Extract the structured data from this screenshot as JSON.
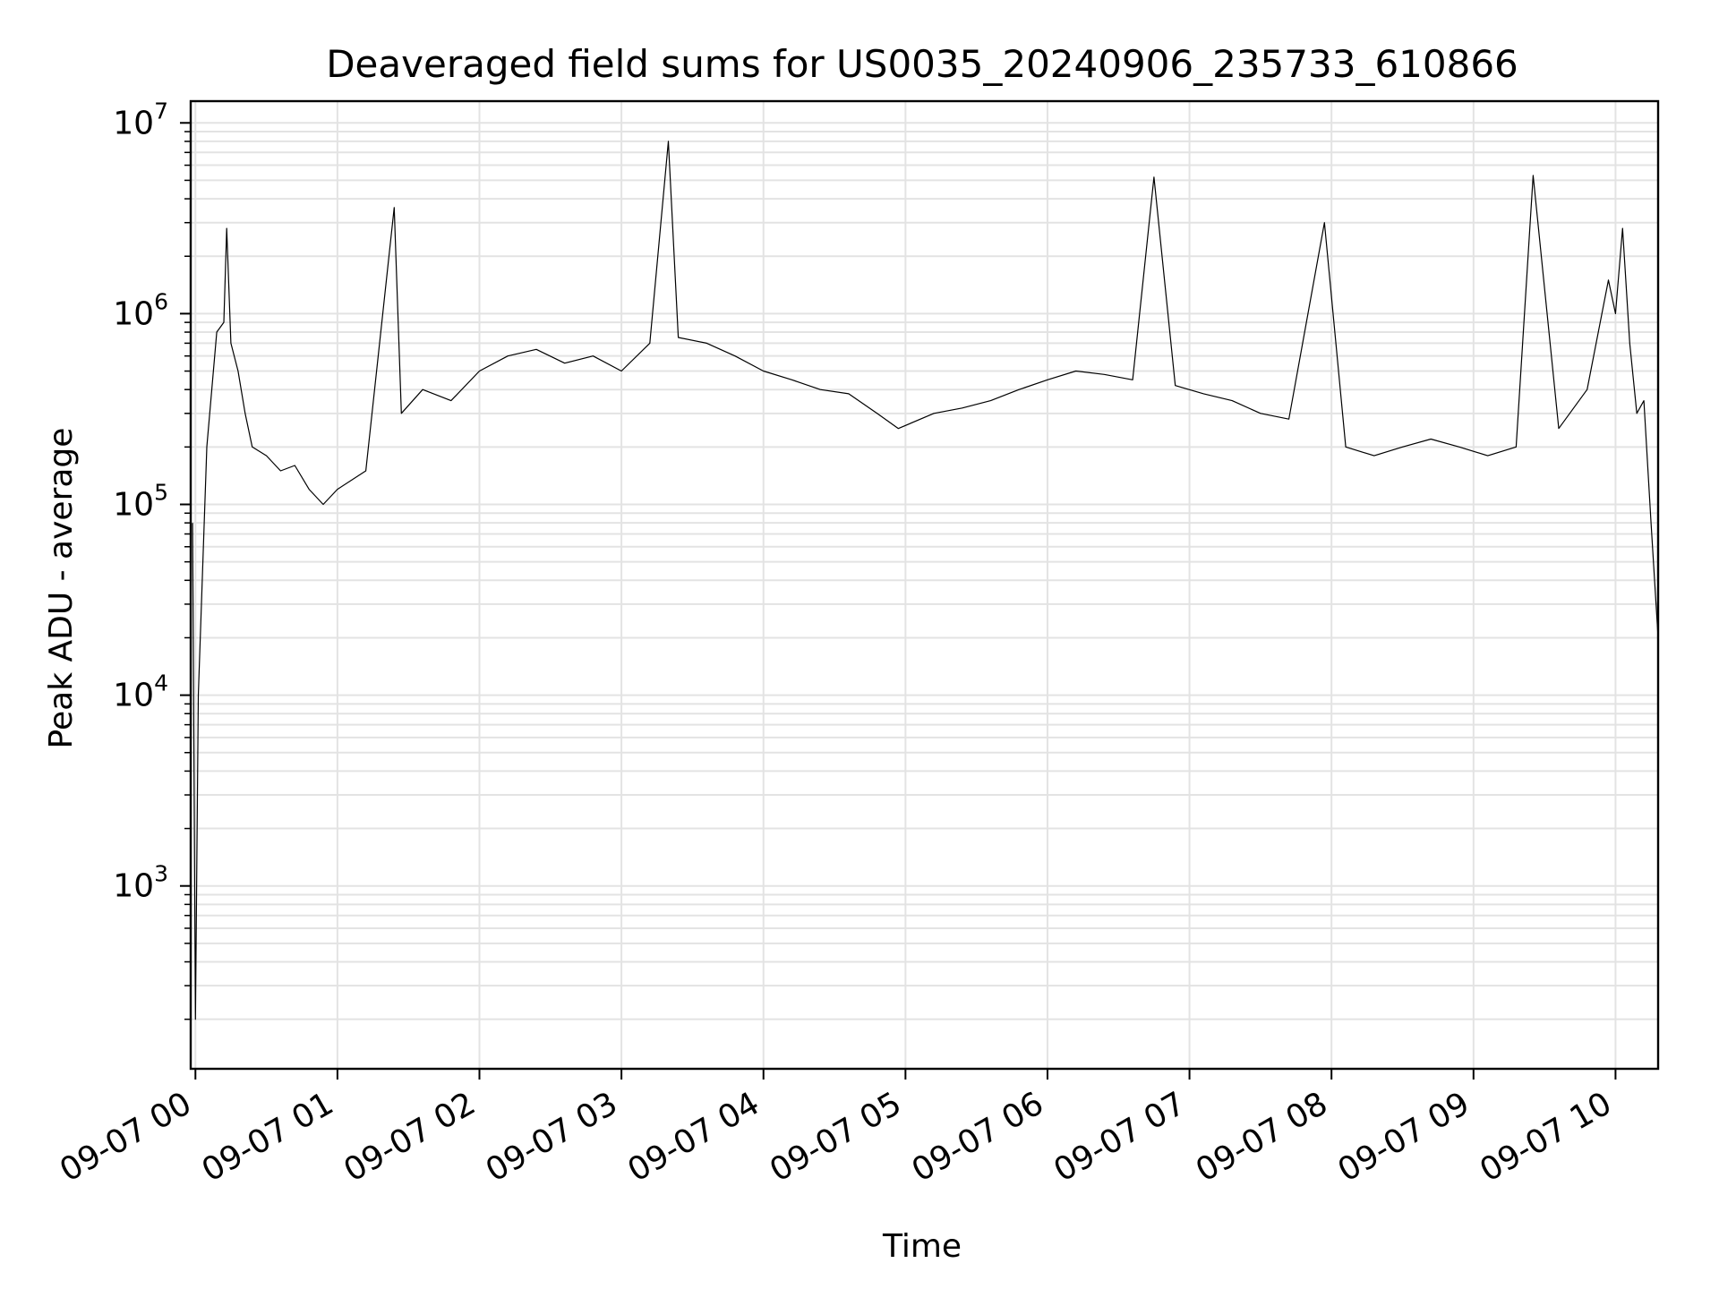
{
  "chart_data": {
    "type": "line",
    "title": "Deaveraged field sums for US0035_20240906_235733_610866",
    "xlabel": "Time",
    "ylabel": "Peak ADU - average",
    "x_scale": "time",
    "y_scale": "log",
    "xlim": [
      "2024-09-06 23:58",
      "2024-09-07 10:18"
    ],
    "ylim": [
      110,
      13000000
    ],
    "x_ticks": [
      "09-07 00",
      "09-07 01",
      "09-07 02",
      "09-07 03",
      "09-07 04",
      "09-07 05",
      "09-07 06",
      "09-07 07",
      "09-07 08",
      "09-07 09",
      "09-07 10"
    ],
    "x_tick_hours": [
      0,
      1,
      2,
      3,
      4,
      5,
      6,
      7,
      8,
      9,
      10
    ],
    "y_ticks": [
      {
        "value": 1000,
        "base": "10",
        "exp": "3"
      },
      {
        "value": 10000,
        "base": "10",
        "exp": "4"
      },
      {
        "value": 100000,
        "base": "10",
        "exp": "5"
      },
      {
        "value": 1000000,
        "base": "10",
        "exp": "6"
      },
      {
        "value": 10000000,
        "base": "10",
        "exp": "7"
      }
    ],
    "grid": true,
    "line_color": "#000000",
    "grid_color": "#e3e3e3",
    "series": [
      {
        "time_hours": [
          -0.02,
          0.0,
          0.02,
          0.08,
          0.15,
          0.2,
          0.22,
          0.25,
          0.3,
          0.35,
          0.4,
          0.5,
          0.6,
          0.7,
          0.8,
          0.9,
          1.0,
          1.2,
          1.4,
          1.45,
          1.6,
          1.8,
          2.0,
          2.2,
          2.4,
          2.6,
          2.8,
          3.0,
          3.2,
          3.33,
          3.4,
          3.6,
          3.8,
          4.0,
          4.2,
          4.4,
          4.6,
          4.8,
          4.95,
          5.2,
          5.4,
          5.6,
          5.8,
          6.0,
          6.2,
          6.4,
          6.6,
          6.75,
          6.9,
          7.1,
          7.3,
          7.5,
          7.7,
          7.95,
          8.1,
          8.3,
          8.5,
          8.7,
          8.9,
          9.1,
          9.3,
          9.42,
          9.6,
          9.8,
          9.95,
          10.0,
          10.05,
          10.1,
          10.15,
          10.2,
          10.25,
          10.3
        ],
        "values": [
          80000,
          200,
          10000,
          200000,
          800000,
          900000,
          2800000,
          700000,
          500000,
          300000,
          200000,
          180000,
          150000,
          160000,
          120000,
          100000,
          120000,
          150000,
          3600000,
          300000,
          400000,
          350000,
          500000,
          600000,
          650000,
          550000,
          600000,
          500000,
          700000,
          8000000,
          750000,
          700000,
          600000,
          500000,
          450000,
          400000,
          380000,
          300000,
          250000,
          300000,
          320000,
          350000,
          400000,
          450000,
          500000,
          480000,
          450000,
          5200000,
          420000,
          380000,
          350000,
          300000,
          280000,
          3000000,
          200000,
          180000,
          200000,
          220000,
          200000,
          180000,
          200000,
          5300000,
          250000,
          400000,
          1500000,
          1000000,
          2800000,
          700000,
          300000,
          350000,
          80000,
          20000
        ]
      }
    ]
  }
}
